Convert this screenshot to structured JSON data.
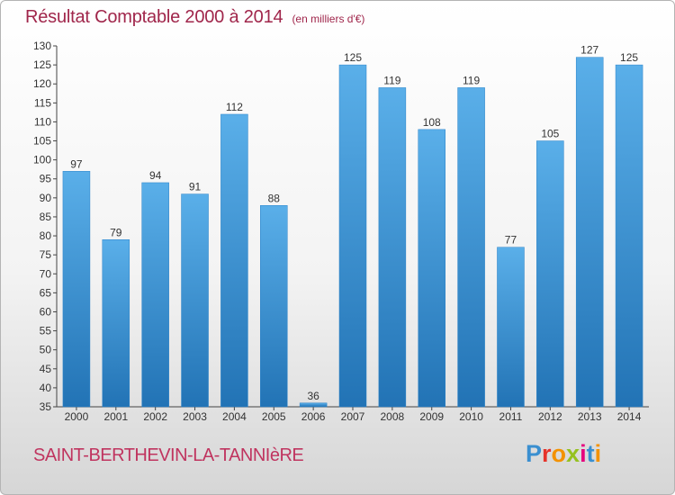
{
  "title": "Résultat Comptable 2000 à 2014",
  "unit": "(en milliers d'€)",
  "commune": "SAINT-BERTHEVIN-LA-TANNIèRE",
  "logo": {
    "text": "Proxiti",
    "colors": [
      "#3a8fd0",
      "#e6332a",
      "#f39200",
      "#95c11f",
      "#e6007e",
      "#3a8fd0",
      "#f39200"
    ]
  },
  "colors": {
    "bar": "#4a9ede",
    "bar_dark": "#2377ba",
    "title": "#a0264b",
    "axis": "#333333"
  },
  "chart_data": {
    "type": "bar",
    "title": "Résultat Comptable 2000 à 2014",
    "subtitle": "(en milliers d'€)",
    "categories": [
      "2000",
      "2001",
      "2002",
      "2003",
      "2004",
      "2005",
      "2006",
      "2007",
      "2008",
      "2009",
      "2010",
      "2011",
      "2012",
      "2013",
      "2014"
    ],
    "values": [
      97,
      79,
      94,
      91,
      112,
      88,
      36,
      125,
      119,
      108,
      119,
      77,
      105,
      127,
      125
    ],
    "ylim": [
      35,
      130
    ],
    "ytick_step": 5,
    "grid": false,
    "data_labels": true
  }
}
